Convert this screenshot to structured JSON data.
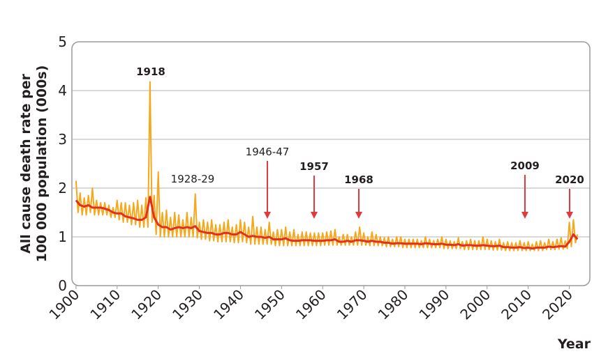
{
  "chart_data": {
    "type": "line",
    "y_label": [
      "All cause death rate per",
      "100 000 population (000s)"
    ],
    "x_label": "Year",
    "xlim": [
      1899,
      2025
    ],
    "ylim": [
      0,
      5
    ],
    "xticks": [
      1900,
      1910,
      1920,
      1930,
      1940,
      1950,
      1960,
      1970,
      1980,
      1990,
      2000,
      2010,
      2020
    ],
    "yticks": [
      0,
      1,
      2,
      3,
      4,
      5
    ],
    "grid": true,
    "annotations": [
      {
        "text": "1918",
        "bold": true
      },
      {
        "text": "1928-29",
        "bold": false
      },
      {
        "text": "1946-47",
        "bold": false
      },
      {
        "text": "1957",
        "bold": true
      },
      {
        "text": "1968",
        "bold": true
      },
      {
        "text": "2009",
        "bold": true
      },
      {
        "text": "2020",
        "bold": true
      }
    ],
    "arrow_color": "#e03a3e",
    "series": [
      {
        "color": "#f5a81c",
        "x": [
          1900,
          1900.5,
          1901,
          1901.5,
          1902,
          1902.5,
          1903,
          1903.5,
          1904,
          1904.5,
          1905,
          1905.5,
          1906,
          1906.5,
          1907,
          1907.5,
          1908,
          1908.5,
          1909,
          1909.5,
          1910,
          1910.5,
          1911,
          1911.5,
          1912,
          1912.5,
          1913,
          1913.5,
          1914,
          1914.5,
          1915,
          1915.5,
          1916,
          1916.5,
          1917,
          1917.5,
          1918,
          1918.5,
          1919,
          1919.5,
          1920,
          1920.5,
          1921,
          1921.5,
          1922,
          1922.5,
          1923,
          1923.5,
          1924,
          1924.5,
          1925,
          1925.5,
          1926,
          1926.5,
          1927,
          1927.5,
          1928,
          1928.5,
          1929,
          1929.5,
          1930,
          1930.5,
          1931,
          1931.5,
          1932,
          1932.5,
          1933,
          1933.5,
          1934,
          1934.5,
          1935,
          1935.5,
          1936,
          1936.5,
          1937,
          1937.5,
          1938,
          1938.5,
          1939,
          1939.5,
          1940,
          1940.5,
          1941,
          1941.5,
          1942,
          1942.5,
          1943,
          1943.5,
          1944,
          1944.5,
          1945,
          1945.5,
          1946,
          1946.5,
          1947,
          1947.5,
          1948,
          1948.5,
          1949,
          1949.5,
          1950,
          1950.5,
          1951,
          1951.5,
          1952,
          1952.5,
          1953,
          1953.5,
          1954,
          1954.5,
          1955,
          1955.5,
          1956,
          1956.5,
          1957,
          1957.5,
          1958,
          1958.5,
          1959,
          1959.5,
          1960,
          1960.5,
          1961,
          1961.5,
          1962,
          1962.5,
          1963,
          1963.5,
          1964,
          1964.5,
          1965,
          1965.5,
          1966,
          1966.5,
          1967,
          1967.5,
          1968,
          1968.5,
          1969,
          1969.5,
          1970,
          1970.5,
          1971,
          1971.5,
          1972,
          1972.5,
          1973,
          1973.5,
          1974,
          1974.5,
          1975,
          1975.5,
          1976,
          1976.5,
          1977,
          1977.5,
          1978,
          1978.5,
          1979,
          1979.5,
          1980,
          1980.5,
          1981,
          1981.5,
          1982,
          1982.5,
          1983,
          1983.5,
          1984,
          1984.5,
          1985,
          1985.5,
          1986,
          1986.5,
          1987,
          1987.5,
          1988,
          1988.5,
          1989,
          1989.5,
          1990,
          1990.5,
          1991,
          1991.5,
          1992,
          1992.5,
          1993,
          1993.5,
          1994,
          1994.5,
          1995,
          1995.5,
          1996,
          1996.5,
          1997,
          1997.5,
          1998,
          1998.5,
          1999,
          1999.5,
          2000,
          2000.5,
          2001,
          2001.5,
          2002,
          2002.5,
          2003,
          2003.5,
          2004,
          2004.5,
          2005,
          2005.5,
          2006,
          2006.5,
          2007,
          2007.5,
          2008,
          2008.5,
          2009,
          2009.5,
          2010,
          2010.5,
          2011,
          2011.5,
          2012,
          2012.5,
          2013,
          2013.5,
          2014,
          2014.5,
          2015,
          2015.5,
          2016,
          2016.5,
          2017,
          2017.5,
          2018,
          2018.5,
          2019,
          2019.5,
          2020,
          2020.5,
          2021,
          2021.5,
          2022
        ],
        "values": [
          2.15,
          1.5,
          1.9,
          1.45,
          1.8,
          1.45,
          1.85,
          1.5,
          2.0,
          1.45,
          1.75,
          1.45,
          1.7,
          1.45,
          1.7,
          1.45,
          1.65,
          1.4,
          1.6,
          1.4,
          1.75,
          1.35,
          1.7,
          1.3,
          1.7,
          1.3,
          1.65,
          1.25,
          1.7,
          1.25,
          1.75,
          1.2,
          1.65,
          1.2,
          1.8,
          1.2,
          4.18,
          1.3,
          1.85,
          1.05,
          2.33,
          1.0,
          1.5,
          1.0,
          1.55,
          1.0,
          1.4,
          1.0,
          1.5,
          1.0,
          1.45,
          1.0,
          1.35,
          1.0,
          1.5,
          1.0,
          1.4,
          1.0,
          1.88,
          0.98,
          1.3,
          0.95,
          1.35,
          0.95,
          1.3,
          0.92,
          1.35,
          0.92,
          1.25,
          0.9,
          1.25,
          0.9,
          1.3,
          0.9,
          1.35,
          0.9,
          1.2,
          0.88,
          1.25,
          0.88,
          1.35,
          0.9,
          1.3,
          0.88,
          1.2,
          0.85,
          1.42,
          0.85,
          1.2,
          0.85,
          1.2,
          0.85,
          1.15,
          0.85,
          1.3,
          0.85,
          1.1,
          0.82,
          1.15,
          0.82,
          1.15,
          0.82,
          1.2,
          0.82,
          1.1,
          0.82,
          1.15,
          0.82,
          1.05,
          0.82,
          1.1,
          0.82,
          1.1,
          0.82,
          1.08,
          0.82,
          1.08,
          0.82,
          1.08,
          0.82,
          1.08,
          0.83,
          1.1,
          0.83,
          1.12,
          0.83,
          1.15,
          0.83,
          1.0,
          0.83,
          1.05,
          0.83,
          1.05,
          0.83,
          1.0,
          0.83,
          1.1,
          0.83,
          1.2,
          0.83,
          1.08,
          0.83,
          1.0,
          0.82,
          1.1,
          0.82,
          1.05,
          0.82,
          1.0,
          0.82,
          0.98,
          0.8,
          1.0,
          0.8,
          0.95,
          0.8,
          1.0,
          0.8,
          1.0,
          0.78,
          0.95,
          0.78,
          0.95,
          0.78,
          0.95,
          0.78,
          0.95,
          0.78,
          0.92,
          0.78,
          1.0,
          0.78,
          0.95,
          0.78,
          0.92,
          0.78,
          0.95,
          0.78,
          1.0,
          0.76,
          0.95,
          0.76,
          0.92,
          0.76,
          0.9,
          0.76,
          0.98,
          0.76,
          0.9,
          0.74,
          0.92,
          0.74,
          0.95,
          0.74,
          0.92,
          0.74,
          0.92,
          0.74,
          1.0,
          0.74,
          0.95,
          0.74,
          0.92,
          0.73,
          0.9,
          0.73,
          0.95,
          0.73,
          0.88,
          0.72,
          0.9,
          0.72,
          0.88,
          0.72,
          0.88,
          0.72,
          0.92,
          0.72,
          0.88,
          0.72,
          0.9,
          0.72,
          0.85,
          0.72,
          0.9,
          0.72,
          0.92,
          0.72,
          0.88,
          0.74,
          0.95,
          0.74,
          0.9,
          0.74,
          0.95,
          0.75,
          0.98,
          0.75,
          0.92,
          0.76,
          1.3,
          0.8,
          1.35,
          0.88,
          1.05
        ]
      },
      {
        "color": "#e0301e",
        "x": [
          1900,
          1901,
          1902,
          1903,
          1904,
          1905,
          1906,
          1907,
          1908,
          1909,
          1910,
          1911,
          1912,
          1913,
          1914,
          1915,
          1916,
          1917,
          1918,
          1919,
          1920,
          1921,
          1922,
          1923,
          1924,
          1925,
          1926,
          1927,
          1928,
          1929,
          1930,
          1931,
          1932,
          1933,
          1934,
          1935,
          1936,
          1937,
          1938,
          1939,
          1940,
          1941,
          1942,
          1943,
          1944,
          1945,
          1946,
          1947,
          1948,
          1949,
          1950,
          1951,
          1952,
          1953,
          1954,
          1955,
          1956,
          1957,
          1958,
          1959,
          1960,
          1961,
          1962,
          1963,
          1964,
          1965,
          1966,
          1967,
          1968,
          1969,
          1970,
          1971,
          1972,
          1973,
          1974,
          1975,
          1976,
          1977,
          1978,
          1979,
          1980,
          1981,
          1982,
          1983,
          1984,
          1985,
          1986,
          1987,
          1988,
          1989,
          1990,
          1991,
          1992,
          1993,
          1994,
          1995,
          1996,
          1997,
          1998,
          1999,
          2000,
          2001,
          2002,
          2003,
          2004,
          2005,
          2006,
          2007,
          2008,
          2009,
          2010,
          2011,
          2012,
          2013,
          2014,
          2015,
          2016,
          2017,
          2018,
          2019,
          2020,
          2021,
          2022
        ],
        "values": [
          1.75,
          1.65,
          1.62,
          1.65,
          1.6,
          1.6,
          1.6,
          1.58,
          1.55,
          1.5,
          1.48,
          1.48,
          1.42,
          1.4,
          1.38,
          1.35,
          1.35,
          1.4,
          1.82,
          1.4,
          1.25,
          1.2,
          1.2,
          1.15,
          1.18,
          1.2,
          1.18,
          1.2,
          1.18,
          1.22,
          1.12,
          1.1,
          1.08,
          1.08,
          1.05,
          1.05,
          1.08,
          1.08,
          1.05,
          1.05,
          1.1,
          1.05,
          1.0,
          1.02,
          1.0,
          1.0,
          0.98,
          1.0,
          0.95,
          0.95,
          0.95,
          0.97,
          0.93,
          0.92,
          0.92,
          0.93,
          0.93,
          0.93,
          0.92,
          0.92,
          0.92,
          0.93,
          0.93,
          0.95,
          0.9,
          0.9,
          0.92,
          0.9,
          0.93,
          0.93,
          0.92,
          0.9,
          0.92,
          0.9,
          0.9,
          0.88,
          0.88,
          0.86,
          0.87,
          0.87,
          0.86,
          0.86,
          0.86,
          0.86,
          0.85,
          0.87,
          0.86,
          0.85,
          0.85,
          0.86,
          0.84,
          0.84,
          0.83,
          0.85,
          0.82,
          0.83,
          0.83,
          0.82,
          0.82,
          0.83,
          0.82,
          0.81,
          0.81,
          0.82,
          0.79,
          0.79,
          0.78,
          0.78,
          0.79,
          0.77,
          0.78,
          0.76,
          0.78,
          0.78,
          0.78,
          0.8,
          0.79,
          0.8,
          0.81,
          0.8,
          0.9,
          1.05,
          0.95
        ]
      }
    ]
  }
}
